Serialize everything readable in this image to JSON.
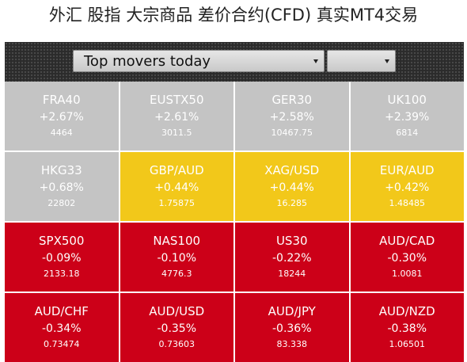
{
  "header": {
    "title": "外汇 股指 大宗商品 差价合约(CFD) 真实MT4交易"
  },
  "toolbar": {
    "period_select_label": "Top movers today",
    "secondary_select_label": ""
  },
  "colors": {
    "gainer_index": "#c4c4c4",
    "gainer_fx": "#f2c81a",
    "loser": "#cc0018",
    "toolbar_bg": "#2b2b2b"
  },
  "movers": [
    {
      "symbol": "FRA40",
      "change": "+2.67%",
      "price": "4464",
      "tone": "gray"
    },
    {
      "symbol": "EUSTX50",
      "change": "+2.61%",
      "price": "3011.5",
      "tone": "gray"
    },
    {
      "symbol": "GER30",
      "change": "+2.58%",
      "price": "10467.75",
      "tone": "gray"
    },
    {
      "symbol": "UK100",
      "change": "+2.39%",
      "price": "6814",
      "tone": "gray"
    },
    {
      "symbol": "HKG33",
      "change": "+0.68%",
      "price": "22802",
      "tone": "gray"
    },
    {
      "symbol": "GBP/AUD",
      "change": "+0.44%",
      "price": "1.75875",
      "tone": "yellow"
    },
    {
      "symbol": "XAG/USD",
      "change": "+0.44%",
      "price": "16.285",
      "tone": "yellow"
    },
    {
      "symbol": "EUR/AUD",
      "change": "+0.42%",
      "price": "1.48485",
      "tone": "yellow"
    },
    {
      "symbol": "SPX500",
      "change": "-0.09%",
      "price": "2133.18",
      "tone": "red"
    },
    {
      "symbol": "NAS100",
      "change": "-0.10%",
      "price": "4776.3",
      "tone": "red"
    },
    {
      "symbol": "US30",
      "change": "-0.22%",
      "price": "18244",
      "tone": "red"
    },
    {
      "symbol": "AUD/CAD",
      "change": "-0.30%",
      "price": "1.0081",
      "tone": "red"
    },
    {
      "symbol": "AUD/CHF",
      "change": "-0.34%",
      "price": "0.73474",
      "tone": "red"
    },
    {
      "symbol": "AUD/USD",
      "change": "-0.35%",
      "price": "0.73603",
      "tone": "red"
    },
    {
      "symbol": "AUD/JPY",
      "change": "-0.36%",
      "price": "83.338",
      "tone": "red"
    },
    {
      "symbol": "AUD/NZD",
      "change": "-0.38%",
      "price": "1.06501",
      "tone": "red"
    }
  ]
}
